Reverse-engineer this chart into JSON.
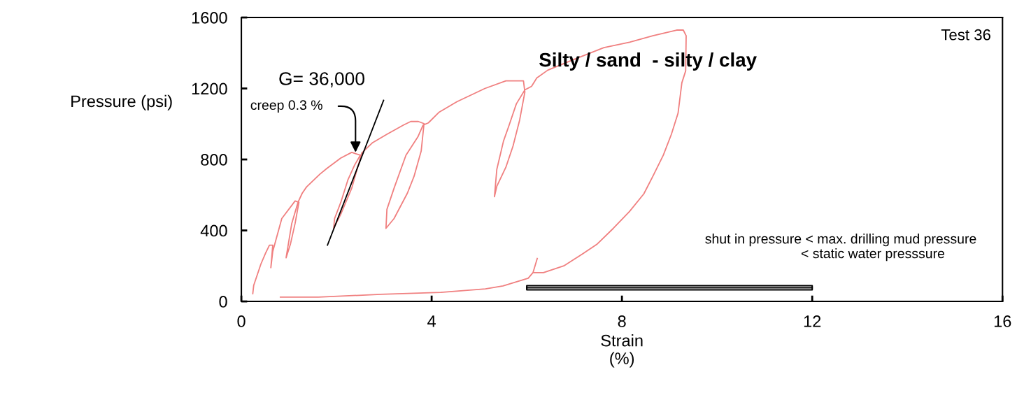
{
  "chart_data": {
    "type": "line",
    "title": "Silty / sand  - silty / clay",
    "xlabel": "Strain\n(%)",
    "ylabel": "Pressure (psi)",
    "xlim": [
      0,
      16
    ],
    "xticks": [
      0,
      4,
      8,
      12,
      16
    ],
    "ylim": [
      0,
      1600
    ],
    "yticks": [
      0,
      400,
      800,
      1200,
      1600
    ],
    "grid": false,
    "legend": false,
    "marker": "none",
    "line_style": "solid",
    "series": [
      {
        "color": "#f08080",
        "x": [
          0.24,
          0.26,
          0.41,
          0.51,
          0.59,
          0.66,
          0.62,
          0.66,
          0.74,
          0.85,
          1.13,
          1.21,
          1.13,
          1.03,
          0.94,
          1.06,
          1.19,
          1.28,
          1.37,
          1.65,
          1.79,
          2.09,
          2.32,
          2.5,
          2.38,
          2.24,
          2.09,
          1.96,
          1.94,
          2.09,
          2.32,
          2.53,
          2.76,
          3.06,
          3.41,
          3.56,
          3.72,
          3.84,
          3.78,
          3.63,
          3.49,
          3.21,
          3.04,
          3.06,
          3.21,
          3.46,
          3.71,
          3.82,
          3.93,
          4.15,
          4.53,
          5.12,
          5.56,
          5.93,
          5.96,
          5.85,
          5.71,
          5.56,
          5.37,
          5.32,
          5.37,
          5.51,
          5.63,
          5.78,
          5.96,
          6.1,
          6.21,
          6.44,
          6.94,
          7.62,
          8.16,
          8.65,
          9.15,
          9.29,
          9.35,
          9.34,
          9.26,
          9.18,
          9.04,
          8.87,
          8.65,
          8.46,
          8.16,
          7.82,
          7.47,
          7.18,
          6.79,
          6.35,
          6.15
        ],
        "values": [
          44,
          91,
          210,
          273,
          317,
          317,
          190,
          281,
          360,
          467,
          566,
          558,
          440,
          321,
          246,
          440,
          558,
          610,
          645,
          717,
          748,
          808,
          840,
          824,
          768,
          685,
          558,
          467,
          412,
          491,
          638,
          836,
          895,
          942,
          994,
          1014,
          1014,
          1002,
          847,
          705,
          610,
          467,
          412,
          519,
          638,
          824,
          927,
          994,
          1006,
          1065,
          1125,
          1200,
          1243,
          1243,
          1180,
          1022,
          875,
          756,
          649,
          590,
          744,
          903,
          994,
          1113,
          1192,
          1212,
          1259,
          1303,
          1358,
          1430,
          1461,
          1497,
          1529,
          1529,
          1497,
          1299,
          1232,
          1061,
          942,
          824,
          705,
          606,
          507,
          412,
          321,
          269,
          202,
          162,
          162
        ]
      },
      {
        "color": "#f08080",
        "x": [
          0.82,
          1.62,
          2.93,
          4.19,
          5.13,
          5.5,
          6.03,
          6.13,
          6.22
        ],
        "values": [
          24,
          24,
          40,
          51,
          71,
          87,
          131,
          162,
          242
        ]
      },
      {
        "color": "#000000",
        "x": [
          1.81,
          2.99
        ],
        "values": [
          317,
          1133
        ]
      },
      {
        "color": "#000000",
        "x": [
          6,
          12
        ],
        "values": [
          77,
          77
        ],
        "lower": [
          65,
          65
        ],
        "upper": [
          89,
          89
        ]
      }
    ],
    "annotations": [
      {
        "text": "G= 36,000",
        "x": 2.99,
        "y": 1133
      },
      {
        "text": "creep 0.3 %",
        "x": 2.4,
        "y": 840
      },
      "Test 36",
      "shut in pressure < max. drilling mud pressure\n                 < static water presssure"
    ]
  }
}
